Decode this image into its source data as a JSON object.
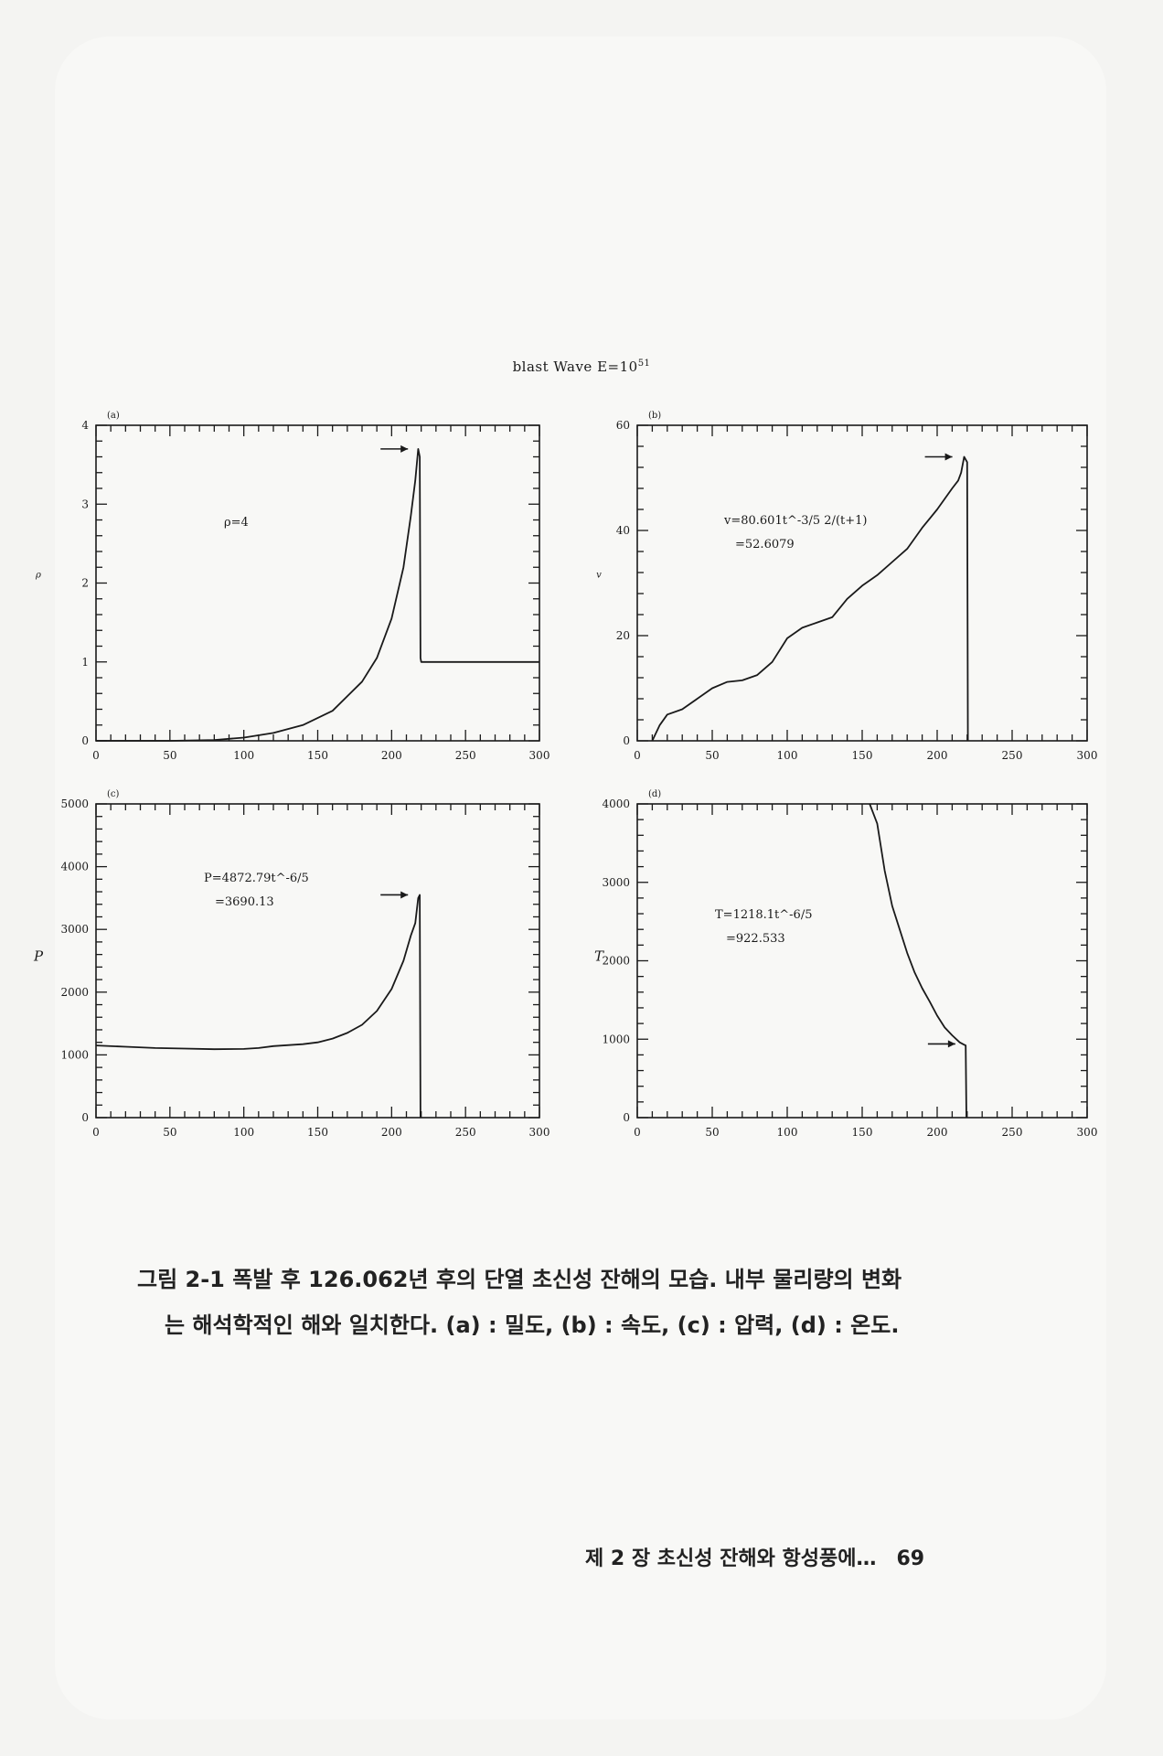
{
  "figure": {
    "title_text": "blast  Wave  E=10",
    "title_exp": "51"
  },
  "panels": [
    {
      "panel_label": "(a)",
      "ylabel": "ρ",
      "yticks": [
        "4",
        "3",
        "2",
        "1",
        "0"
      ],
      "xticks": [
        "0",
        "50",
        "100",
        "150",
        "200",
        "250",
        "300"
      ],
      "annotation": [
        "ρ=4"
      ]
    },
    {
      "panel_label": "(b)",
      "ylabel": "v",
      "yticks": [
        "60",
        "40",
        "20",
        "0"
      ],
      "xticks": [
        "0",
        "50",
        "100",
        "150",
        "200",
        "250",
        "300"
      ],
      "annotation": [
        "v=80.601t^-3/5 2/(t+1)",
        "=52.6079"
      ]
    },
    {
      "panel_label": "(c)",
      "ylabel": "P",
      "yticks": [
        "5000",
        "4000",
        "3000",
        "2000",
        "1000",
        "0"
      ],
      "xticks": [
        "0",
        "50",
        "100",
        "150",
        "200",
        "250",
        "300"
      ],
      "annotation": [
        "P=4872.79t^-6/5",
        "=3690.13"
      ]
    },
    {
      "panel_label": "(d)",
      "ylabel": "T",
      "yticks": [
        "4000",
        "3000",
        "2000",
        "1000",
        "0"
      ],
      "xticks": [
        "0",
        "50",
        "100",
        "150",
        "200",
        "250",
        "300"
      ],
      "annotation": [
        "T=1218.1t^-6/5",
        "=922.533"
      ]
    }
  ],
  "chart_data": [
    {
      "type": "line",
      "panel": "(a)",
      "ylabel": "ρ",
      "xlim": [
        0,
        300
      ],
      "ylim": [
        0,
        4
      ],
      "x": [
        0,
        50,
        80,
        100,
        120,
        140,
        160,
        180,
        190,
        200,
        208,
        213,
        216,
        218,
        219,
        219.5,
        220,
        240,
        260,
        280,
        300
      ],
      "y": [
        0,
        0,
        0.01,
        0.04,
        0.1,
        0.2,
        0.38,
        0.75,
        1.05,
        1.55,
        2.2,
        2.85,
        3.3,
        3.7,
        3.6,
        1.05,
        1.0,
        1.0,
        1.0,
        1.0,
        1.0
      ]
    },
    {
      "type": "line",
      "panel": "(b)",
      "ylabel": "v",
      "xlim": [
        0,
        300
      ],
      "ylim": [
        0,
        60
      ],
      "x": [
        10,
        15,
        20,
        30,
        40,
        50,
        60,
        70,
        80,
        90,
        100,
        110,
        120,
        130,
        140,
        150,
        160,
        170,
        180,
        190,
        200,
        205,
        210,
        214,
        216,
        218,
        220,
        220.5
      ],
      "y": [
        0,
        3,
        5,
        6,
        8,
        10,
        11.2,
        11.5,
        12.5,
        15,
        19.5,
        21.5,
        22.5,
        23.5,
        27,
        29.5,
        31.5,
        34,
        36.5,
        40.5,
        44,
        46,
        48,
        49.5,
        51,
        54,
        53,
        0
      ]
    },
    {
      "type": "line",
      "panel": "(c)",
      "ylabel": "P",
      "xlim": [
        0,
        300
      ],
      "ylim": [
        0,
        5000
      ],
      "x": [
        0,
        20,
        40,
        60,
        80,
        100,
        110,
        120,
        140,
        150,
        160,
        170,
        180,
        190,
        200,
        208,
        213,
        216,
        218,
        219,
        219.5
      ],
      "y": [
        1150,
        1130,
        1110,
        1100,
        1090,
        1095,
        1110,
        1140,
        1170,
        1200,
        1260,
        1350,
        1480,
        1700,
        2050,
        2500,
        2900,
        3100,
        3500,
        3550,
        0
      ]
    },
    {
      "type": "line",
      "panel": "(d)",
      "ylabel": "T",
      "xlim": [
        0,
        300
      ],
      "ylim": [
        0,
        4000
      ],
      "x": [
        155,
        160,
        165,
        170,
        175,
        180,
        185,
        190,
        195,
        200,
        205,
        210,
        215,
        218,
        219,
        219.5
      ],
      "y": [
        4000,
        3750,
        3150,
        2700,
        2400,
        2100,
        1850,
        1650,
        1480,
        1300,
        1150,
        1050,
        960,
        930,
        920,
        0
      ]
    }
  ],
  "caption": {
    "line1": "그림 2-1  폭발 후 126.062년 후의 단열 초신성 잔해의 모습. 내부 물리량의 변화",
    "line2": "는 해석학적인 해와 일치한다. (a) : 밀도, (b) : 속도, (c) : 압력, (d) : 온도."
  },
  "footer": {
    "chapter": "제 2 장  초신성 잔해와 항성풍에…",
    "page_number": "69"
  }
}
